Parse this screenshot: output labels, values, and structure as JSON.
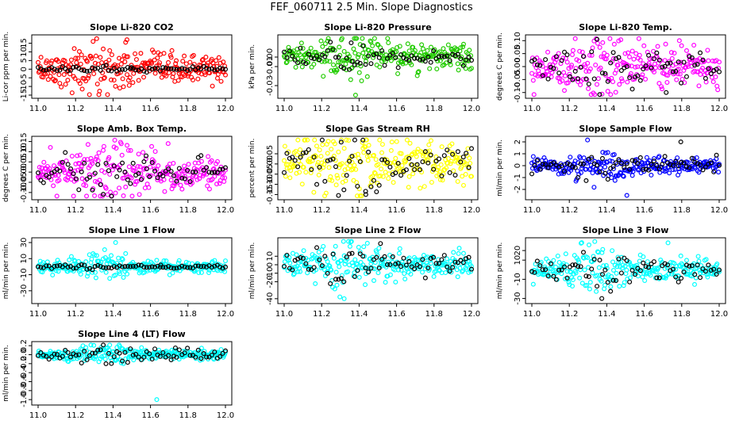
{
  "figure": {
    "title": "FEF_060711  2.5 Min. Slope Diagnostics"
  },
  "chart_data": [
    {
      "type": "scatter",
      "title": "Slope Li-820 CO2",
      "ylabel": "Li-cor ppm per min.",
      "xlim": [
        11.0,
        12.0
      ],
      "ylim": [
        -15,
        18
      ],
      "xticks": [
        "11.0",
        "11.2",
        "11.4",
        "11.6",
        "11.8",
        "12.0"
      ],
      "yticks": [
        "-15",
        "-10",
        "-5",
        "0",
        "5",
        "10",
        "15"
      ],
      "colors": {
        "primary": "#ff0000",
        "secondary": "#000000"
      },
      "series": [
        {
          "spread": 4,
          "outlier": 17
        },
        {
          "spread": 0.6,
          "outlier": 1
        }
      ]
    },
    {
      "type": "scatter",
      "title": "Slope Li-820 Pressure",
      "ylabel": "kPa per min.",
      "xlim": [
        11.0,
        12.0
      ],
      "ylim": [
        -0.04,
        0.02
      ],
      "xticks": [
        "11.0",
        "11.2",
        "11.4",
        "11.6",
        "11.8",
        "12.0"
      ],
      "yticks": [
        "-0.03",
        "-0.01",
        "0.00"
      ],
      "colors": {
        "primary": "#22cc00",
        "secondary": "#000000"
      },
      "series": [
        {
          "spread": 0.006,
          "outlier": -0.04
        },
        {
          "spread": 0.004,
          "outlier": 0.015
        }
      ]
    },
    {
      "type": "scatter",
      "title": "Slope Li-820 Temp.",
      "ylabel": "degrees C per min.",
      "xlim": [
        11.0,
        12.0
      ],
      "ylim": [
        -0.11,
        0.11
      ],
      "xticks": [
        "11.0",
        "11.2",
        "11.4",
        "11.6",
        "11.8",
        "12.0"
      ],
      "yticks": [
        "-0.10",
        "-0.05",
        "0.00",
        "0.05",
        "0.10"
      ],
      "colors": {
        "primary": "#ff00ff",
        "secondary": "#000000"
      },
      "series": [
        {
          "spread": 0.035,
          "outlier": 0.1
        },
        {
          "spread": 0.03,
          "outlier": -0.1
        }
      ]
    },
    {
      "type": "scatter",
      "title": "Slope Amb. Box Temp.",
      "ylabel": "degrees C per min.",
      "xlim": [
        11.0,
        12.0
      ],
      "ylim": [
        -0.12,
        0.16
      ],
      "xticks": [
        "11.0",
        "11.2",
        "11.4",
        "11.6",
        "11.8",
        "12.0"
      ],
      "yticks": [
        "-0.10",
        "-0.05",
        "0.00",
        "0.05",
        "0.10",
        "0.15"
      ],
      "colors": {
        "primary": "#ff00ff",
        "secondary": "#000000"
      },
      "series": [
        {
          "spread": 0.04,
          "outlier": 0.14
        },
        {
          "spread": 0.03,
          "outlier": 0.08
        }
      ]
    },
    {
      "type": "scatter",
      "title": "Slope Gas Stream RH",
      "ylabel": "percent per min.",
      "xlim": [
        11.0,
        12.0
      ],
      "ylim": [
        -0.16,
        0.12
      ],
      "xticks": [
        "11.0",
        "11.2",
        "11.4",
        "11.6",
        "11.8",
        "12.0"
      ],
      "yticks": [
        "-0.15",
        "-0.10",
        "-0.05",
        "0.00",
        "0.05"
      ],
      "colors": {
        "primary": "#ffff00",
        "secondary": "#000000"
      },
      "series": [
        {
          "spread": 0.05,
          "outlier": 0.11
        },
        {
          "spread": 0.04,
          "outlier": -0.15
        }
      ]
    },
    {
      "type": "scatter",
      "title": "Slope Sample Flow",
      "ylabel": "ml/min per min.",
      "xlim": [
        11.0,
        12.0
      ],
      "ylim": [
        -2.6,
        2.2
      ],
      "xticks": [
        "11.0",
        "11.2",
        "11.4",
        "11.6",
        "11.8",
        "12.0"
      ],
      "yticks": [
        "-2",
        "-1",
        "0",
        "1",
        "2"
      ],
      "colors": {
        "primary": "#0000ff",
        "secondary": "#000000"
      },
      "series": [
        {
          "spread": 0.35,
          "outlier": -2.5
        },
        {
          "spread": 0.3,
          "outlier": 2
        }
      ]
    },
    {
      "type": "scatter",
      "title": "Slope Line 1 Flow",
      "ylabel": "ml/min per min.",
      "xlim": [
        11.0,
        12.0
      ],
      "ylim": [
        -42,
        32
      ],
      "xticks": [
        "11.0",
        "11.2",
        "11.4",
        "11.6",
        "11.8",
        "12.0"
      ],
      "yticks": [
        "-30",
        "-10",
        "10",
        "30"
      ],
      "colors": {
        "primary": "#00ffff",
        "secondary": "#000000"
      },
      "series": [
        {
          "spread": 4,
          "outlier": 30
        },
        {
          "spread": 1,
          "outlier": 2
        }
      ]
    },
    {
      "type": "scatter",
      "title": "Slope Line 2 Flow",
      "ylabel": "ml/min per min.",
      "xlim": [
        11.0,
        12.0
      ],
      "ylim": [
        -42,
        28
      ],
      "xticks": [
        "11.0",
        "11.2",
        "11.4",
        "11.6",
        "11.8",
        "12.0"
      ],
      "yticks": [
        "-40",
        "-20",
        "-10",
        "0",
        "10"
      ],
      "colors": {
        "primary": "#00ffff",
        "secondary": "#000000"
      },
      "series": [
        {
          "spread": 7,
          "outlier": -40
        },
        {
          "spread": 6,
          "outlier": 25
        }
      ]
    },
    {
      "type": "scatter",
      "title": "Slope Line 3 Flow",
      "ylabel": "ml/min per min.",
      "xlim": [
        11.0,
        12.0
      ],
      "ylim": [
        -32,
        30
      ],
      "xticks": [
        "11.0",
        "11.2",
        "11.4",
        "11.6",
        "11.8",
        "12.0"
      ],
      "yticks": [
        "-30",
        "-10",
        "10",
        "20"
      ],
      "colors": {
        "primary": "#00ffff",
        "secondary": "#000000"
      },
      "series": [
        {
          "spread": 6,
          "outlier": 28
        },
        {
          "spread": 5,
          "outlier": -30
        }
      ]
    },
    {
      "type": "scatter",
      "title": "Slope Line 4 (LT) Flow",
      "ylabel": "ml/min per min.",
      "xlim": [
        11.0,
        12.0
      ],
      "ylim": [
        -1.05,
        0.22
      ],
      "xticks": [
        "11.0",
        "11.2",
        "11.4",
        "11.6",
        "11.8",
        "12.0"
      ],
      "yticks": [
        "-1.0",
        "-0.8",
        "-0.6",
        "-0.4",
        "-0.2",
        "0.0",
        "0.2"
      ],
      "colors": {
        "primary": "#00ffff",
        "secondary": "#000000"
      },
      "series": [
        {
          "spread": 0.05,
          "outlier": -1.0
        },
        {
          "spread": 0.06,
          "outlier": 0.15
        }
      ]
    }
  ]
}
